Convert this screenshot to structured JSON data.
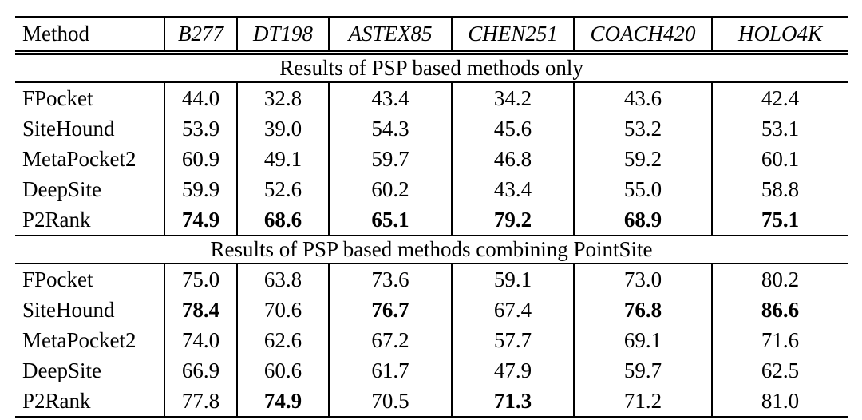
{
  "table": {
    "columns": [
      "Method",
      "B277",
      "DT198",
      "ASTEX85",
      "CHEN251",
      "COACH420",
      "HOLO4K"
    ],
    "sections": [
      {
        "title": "Results of PSP based methods only",
        "rows": [
          {
            "method": "FPocket",
            "values": [
              "44.0",
              "32.8",
              "43.4",
              "34.2",
              "43.6",
              "42.4"
            ],
            "bold": []
          },
          {
            "method": "SiteHound",
            "values": [
              "53.9",
              "39.0",
              "54.3",
              "45.6",
              "53.2",
              "53.1"
            ],
            "bold": []
          },
          {
            "method": "MetaPocket2",
            "values": [
              "60.9",
              "49.1",
              "59.7",
              "46.8",
              "59.2",
              "60.1"
            ],
            "bold": []
          },
          {
            "method": "DeepSite",
            "values": [
              "59.9",
              "52.6",
              "60.2",
              "43.4",
              "55.0",
              "58.8"
            ],
            "bold": []
          },
          {
            "method": "P2Rank",
            "values": [
              "74.9",
              "68.6",
              "65.1",
              "79.2",
              "68.9",
              "75.1"
            ],
            "bold": [
              0,
              1,
              2,
              3,
              4,
              5
            ]
          }
        ]
      },
      {
        "title": "Results of PSP based methods combining PointSite",
        "rows": [
          {
            "method": "FPocket",
            "values": [
              "75.0",
              "63.8",
              "73.6",
              "59.1",
              "73.0",
              "80.2"
            ],
            "bold": []
          },
          {
            "method": "SiteHound",
            "values": [
              "78.4",
              "70.6",
              "76.7",
              "67.4",
              "76.8",
              "86.6"
            ],
            "bold": [
              0,
              2,
              4,
              5
            ]
          },
          {
            "method": "MetaPocket2",
            "values": [
              "74.0",
              "62.6",
              "67.2",
              "57.7",
              "69.1",
              "71.6"
            ],
            "bold": []
          },
          {
            "method": "DeepSite",
            "values": [
              "66.9",
              "60.6",
              "61.7",
              "47.9",
              "59.7",
              "62.5"
            ],
            "bold": []
          },
          {
            "method": "P2Rank",
            "values": [
              "77.8",
              "74.9",
              "70.5",
              "71.3",
              "71.2",
              "81.0"
            ],
            "bold": [
              1,
              3
            ]
          }
        ]
      }
    ],
    "text_color": "#000000",
    "background_color": "#ffffff"
  }
}
